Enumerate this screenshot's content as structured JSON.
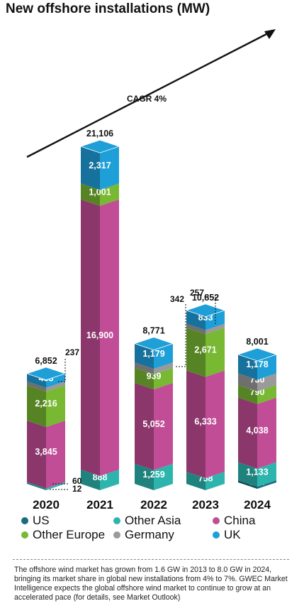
{
  "title": "New offshore installations (MW)",
  "annotation": "CAGR 4%",
  "footnote": "The offshore wind market has grown from 1.6 GW in 2013 to 8.0 GW in 2024, bringing its market share in global new installations from 4% to 7%. GWEC Market Intelligence expects the global offshore wind market to continue to grow at an accelerated pace (for details, see Market Outlook)",
  "colors": {
    "US": "#1b6b80",
    "Other Asia": "#2db5ad",
    "China": "#c14d96",
    "Other Europe": "#78b832",
    "Germany": "#9a9a9a",
    "UK": "#1e9fd8"
  },
  "legend": [
    {
      "name": "US",
      "color": "#1b6b80"
    },
    {
      "name": "Other Asia",
      "color": "#2db5ad"
    },
    {
      "name": "China",
      "color": "#c14d96"
    },
    {
      "name": "Other Europe",
      "color": "#78b832"
    },
    {
      "name": "Germany",
      "color": "#9a9a9a"
    },
    {
      "name": "UK",
      "color": "#1e9fd8"
    }
  ],
  "chart_data": {
    "type": "bar",
    "stacked": true,
    "title": "New offshore installations (MW)",
    "categories": [
      "2020",
      "2021",
      "2022",
      "2023",
      "2024"
    ],
    "totals": [
      "6,852",
      "21,106",
      "8,771",
      "10,852",
      "8,001"
    ],
    "series": [
      {
        "name": "US",
        "values": [
          0,
          0,
          0,
          0,
          132
        ],
        "labels": [
          "",
          "",
          "",
          "",
          "132"
        ]
      },
      {
        "name": "Other Asia",
        "values": [
          72,
          888,
          1259,
          758,
          1133
        ],
        "labels": [
          "",
          "888",
          "1,259",
          "758",
          "1,133"
        ]
      },
      {
        "name": "China",
        "values": [
          3845,
          16900,
          5052,
          6333,
          4038
        ],
        "labels": [
          "3,845",
          "16,900",
          "5,052",
          "6,333",
          "4,038"
        ]
      },
      {
        "name": "Other Europe",
        "values": [
          2216,
          1001,
          939,
          2671,
          790
        ],
        "labels": [
          "2,216",
          "1,001",
          "939",
          "2,671",
          "790"
        ]
      },
      {
        "name": "Germany",
        "values": [
          237,
          0,
          342,
          257,
          730
        ],
        "labels": [
          "",
          "",
          "",
          "",
          "730"
        ]
      },
      {
        "name": "UK",
        "values": [
          483,
          2317,
          1179,
          833,
          1178
        ],
        "labels": [
          "483",
          "2,317",
          "1,179",
          "833",
          "1,178"
        ]
      }
    ],
    "callouts": [
      {
        "category": "2020",
        "text": "237"
      },
      {
        "category": "2020",
        "text": "60"
      },
      {
        "category": "2020",
        "text": "12"
      },
      {
        "category": "2022",
        "text": "342"
      },
      {
        "category": "2023",
        "text": "257"
      }
    ]
  }
}
